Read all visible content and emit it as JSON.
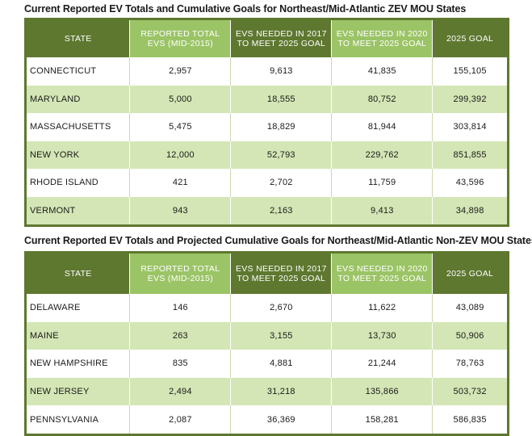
{
  "table1": {
    "title": "Current Reported EV Totals and Cumulative Goals for Northeast/Mid-Atlantic ZEV MOU States",
    "headers": [
      "STATE",
      "REPORTED TOTAL EVs (MID-2015)",
      "EVs NEEDED IN 2017 TO MEET 2025 GOAL",
      "EVS NEEDED IN 2020 TO MEET 2025 GOAL",
      "2025 GOAL"
    ],
    "rows": [
      [
        "CONNECTICUT",
        "2,957",
        "9,613",
        "41,835",
        "155,105"
      ],
      [
        "MARYLAND",
        "5,000",
        "18,555",
        "80,752",
        "299,392"
      ],
      [
        "MASSACHUSETTS",
        "5,475",
        "18,829",
        "81,944",
        "303,814"
      ],
      [
        "NEW YORK",
        "12,000",
        "52,793",
        "229,762",
        "851,855"
      ],
      [
        "RHODE ISLAND",
        "421",
        "2,702",
        "11,759",
        "43,596"
      ],
      [
        "VERMONT",
        "943",
        "2,163",
        "9,413",
        "34,898"
      ]
    ]
  },
  "table2": {
    "title": "Current Reported EV Totals and Projected Cumulative Goals for Northeast/Mid-Atlantic Non-ZEV MOU States",
    "headers": [
      "STATE",
      "REPORTED TOTAL EVs (MID-2015)",
      "EVs NEEDED IN 2017 TO MEET 2025 GOAL",
      "EVS NEEDED IN 2020 TO MEET 2025 GOAL",
      "2025 GOAL"
    ],
    "rows": [
      [
        "DELAWARE",
        "146",
        "2,670",
        "11,622",
        "43,089"
      ],
      [
        "MAINE",
        "263",
        "3,155",
        "13,730",
        "50,906"
      ],
      [
        "NEW HAMPSHIRE",
        "835",
        "4,881",
        "21,244",
        "78,763"
      ],
      [
        "NEW JERSEY",
        "2,494",
        "31,218",
        "135,866",
        "503,732"
      ],
      [
        "PENNSYLVANIA",
        "2,087",
        "36,369",
        "158,281",
        "586,835"
      ]
    ]
  },
  "colors": {
    "header_dark": "#5e7830",
    "header_light": "#9bc466",
    "row_alt": "#d4e6b5"
  }
}
